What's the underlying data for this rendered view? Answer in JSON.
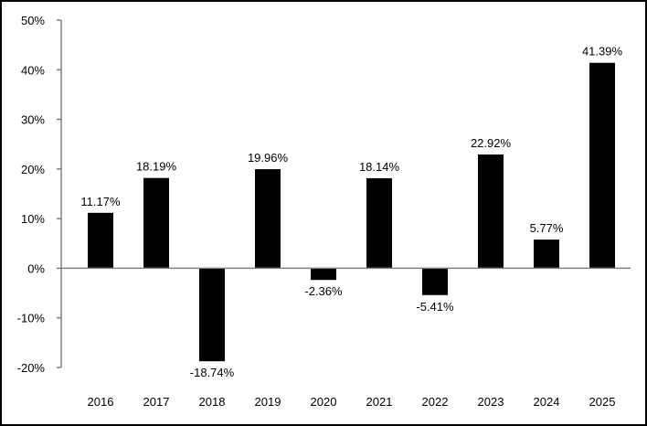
{
  "chart_data": {
    "type": "bar",
    "title": "",
    "xlabel": "",
    "ylabel": "",
    "categories": [
      "2016",
      "2017",
      "2018",
      "2019",
      "2020",
      "2021",
      "2022",
      "2023",
      "2024",
      "2025"
    ],
    "values": [
      11.17,
      18.19,
      -18.74,
      19.96,
      -2.36,
      18.14,
      -5.41,
      22.92,
      5.77,
      41.39
    ],
    "data_labels": [
      "11.17%",
      "18.19%",
      "-18.74%",
      "19.96%",
      "-2.36%",
      "18.14%",
      "-5.41%",
      "22.92%",
      "5.77%",
      "41.39%"
    ],
    "ylim": [
      -20,
      50
    ],
    "y_ticks": [
      50,
      40,
      30,
      20,
      10,
      0,
      -10,
      -20
    ],
    "y_tick_labels": [
      "50%",
      "40%",
      "30%",
      "20%",
      "10%",
      "0%",
      "-10%",
      "-20%"
    ],
    "grid": false,
    "legend": "none",
    "colors": {
      "bar": "#000000",
      "axis": "#808080",
      "frame": "#000000"
    }
  }
}
